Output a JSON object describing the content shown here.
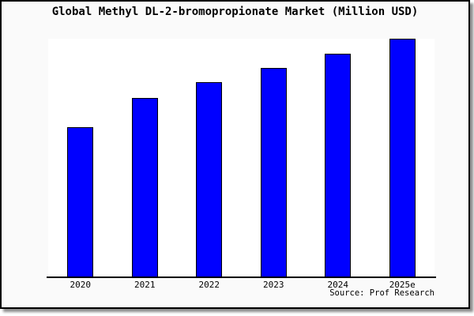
{
  "chart_data": {
    "type": "bar",
    "title": "Global Methyl DL-2-bromopropionate Market (Million USD)",
    "categories": [
      "2020",
      "2021",
      "2022",
      "2023",
      "2024",
      "2025e"
    ],
    "values": [
      62.7,
      75.1,
      81.6,
      87.8,
      93.6,
      100
    ],
    "value_note": "relative bar heights as % of tallest bar; chart shows no y-axis scale",
    "xlabel": "",
    "ylabel": "",
    "ylim": [
      0,
      100
    ],
    "grid": false,
    "legend": false,
    "yaxis_visible": false,
    "source_note": "Source: Prof Research",
    "bar_color": "#0000ff",
    "bar_edge_color": "#000000"
  },
  "colors": {
    "figure_bg": "#fafafa",
    "plot_bg": "#ffffff",
    "axis_line": "#000000",
    "frame_border": "#000000",
    "text": "#000000"
  }
}
